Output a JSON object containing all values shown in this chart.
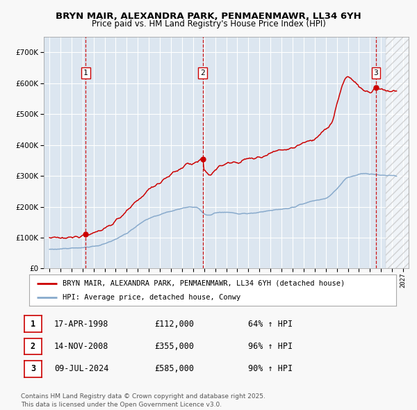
{
  "title1": "BRYN MAIR, ALEXANDRA PARK, PENMAENMAWR, LL34 6YH",
  "title2": "Price paid vs. HM Land Registry's House Price Index (HPI)",
  "background_color": "#f8f8f8",
  "plot_bg_color": "#dce6f0",
  "grid_color": "#ffffff",
  "red_line_color": "#cc0000",
  "blue_line_color": "#88aacc",
  "sale_prices": [
    112000,
    355000,
    585000
  ],
  "sale_labels": [
    "1",
    "2",
    "3"
  ],
  "sale_hpi_pct": [
    "64% ↑ HPI",
    "96% ↑ HPI",
    "90% ↑ HPI"
  ],
  "sale_dates_str": [
    "17-APR-1998",
    "14-NOV-2008",
    "09-JUL-2024"
  ],
  "sale_prices_str": [
    "£112,000",
    "£355,000",
    "£585,000"
  ],
  "legend_red": "BRYN MAIR, ALEXANDRA PARK, PENMAENMAWR, LL34 6YH (detached house)",
  "legend_blue": "HPI: Average price, detached house, Conwy",
  "footnote": "Contains HM Land Registry data © Crown copyright and database right 2025.\nThis data is licensed under the Open Government Licence v3.0.",
  "xmin": 1994.5,
  "xmax": 2027.5,
  "ymin": 0,
  "ymax": 750000,
  "yticks": [
    0,
    100000,
    200000,
    300000,
    400000,
    500000,
    600000,
    700000
  ],
  "hatch_start": 2025.4
}
